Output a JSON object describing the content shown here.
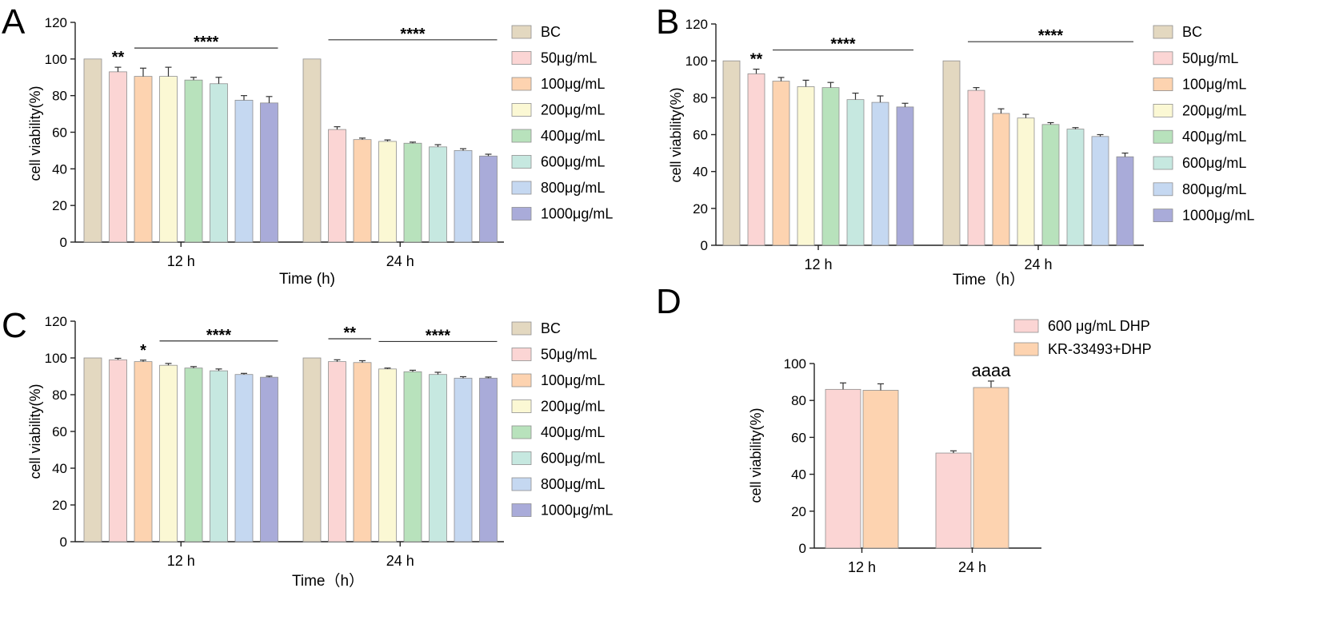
{
  "colors": {
    "BC": "#e3d8c0",
    "50": "#fbd5d4",
    "100": "#fdd3b0",
    "200": "#fbf8d4",
    "400": "#b8e2bc",
    "600": "#c6e8e0",
    "800": "#c5d8f1",
    "1000": "#a9abd9",
    "axis": "#222222"
  },
  "chart_data": [
    {
      "id": "A",
      "type": "bar",
      "panel_label": "A",
      "ylabel": "cell viability(%)",
      "xlabel": "Time (h)",
      "ylim": [
        0,
        120
      ],
      "yticks": [
        "0",
        "20",
        "40",
        "60",
        "80",
        "100",
        "120"
      ],
      "categories": [
        "12 h",
        "24 h"
      ],
      "series": [
        {
          "name": "BC",
          "values": [
            100,
            100
          ],
          "errors": [
            0,
            0
          ]
        },
        {
          "name": "50μg/mL",
          "values": [
            93,
            61.5
          ],
          "errors": [
            2.5,
            1.5
          ]
        },
        {
          "name": "100μg/mL",
          "values": [
            90.5,
            56
          ],
          "errors": [
            4.5,
            0.8
          ]
        },
        {
          "name": "200μg/mL",
          "values": [
            90.5,
            55
          ],
          "errors": [
            5,
            0.8
          ]
        },
        {
          "name": "400μg/mL",
          "values": [
            88.5,
            54
          ],
          "errors": [
            1.5,
            0.6
          ]
        },
        {
          "name": "600μg/mL",
          "values": [
            86.5,
            52
          ],
          "errors": [
            3.5,
            1.2
          ]
        },
        {
          "name": "800μg/mL",
          "values": [
            77.5,
            50
          ],
          "errors": [
            2.5,
            1
          ]
        },
        {
          "name": "1000μg/mL",
          "values": [
            76,
            47
          ],
          "errors": [
            3.5,
            1
          ]
        }
      ],
      "annotations": [
        {
          "text": "**",
          "group": 0,
          "series": 1
        },
        {
          "text": "****",
          "group": 0,
          "from": 2,
          "to": 7
        },
        {
          "text": "****",
          "group": 1,
          "from": 1,
          "to": 7
        }
      ],
      "legend": [
        "BC",
        "50μg/mL",
        "100μg/mL",
        "200μg/mL",
        "400μg/mL",
        "600μg/mL",
        "800μg/mL",
        "1000μg/mL"
      ]
    },
    {
      "id": "B",
      "type": "bar",
      "panel_label": "B",
      "ylabel": "cell viability(%)",
      "xlabel": "Time（h）",
      "ylim": [
        0,
        120
      ],
      "yticks": [
        "0",
        "20",
        "40",
        "60",
        "80",
        "100",
        "120"
      ],
      "categories": [
        "12 h",
        "24 h"
      ],
      "series": [
        {
          "name": "BC",
          "values": [
            100,
            100
          ],
          "errors": [
            0,
            0
          ]
        },
        {
          "name": "50μg/mL",
          "values": [
            93,
            84
          ],
          "errors": [
            2.5,
            1.5
          ]
        },
        {
          "name": "100μg/mL",
          "values": [
            89,
            71.5
          ],
          "errors": [
            2,
            2.5
          ]
        },
        {
          "name": "200μg/mL",
          "values": [
            86,
            69
          ],
          "errors": [
            3.5,
            2
          ]
        },
        {
          "name": "400μg/mL",
          "values": [
            85.5,
            65.5
          ],
          "errors": [
            2.8,
            1
          ]
        },
        {
          "name": "600μg/mL",
          "values": [
            79,
            63
          ],
          "errors": [
            3.5,
            0.8
          ]
        },
        {
          "name": "800μg/mL",
          "values": [
            77.5,
            59
          ],
          "errors": [
            3.5,
            1
          ]
        },
        {
          "name": "1000μg/mL",
          "values": [
            75,
            48
          ],
          "errors": [
            2,
            2
          ]
        }
      ],
      "annotations": [
        {
          "text": "**",
          "group": 0,
          "series": 1
        },
        {
          "text": "****",
          "group": 0,
          "from": 2,
          "to": 7
        },
        {
          "text": "****",
          "group": 1,
          "from": 1,
          "to": 7
        }
      ],
      "legend": [
        "BC",
        "50μg/mL",
        "100μg/mL",
        "200μg/mL",
        "400μg/mL",
        "600μg/mL",
        "800μg/mL",
        "1000μg/mL"
      ]
    },
    {
      "id": "C",
      "type": "bar",
      "panel_label": "C",
      "ylabel": "cell viability(%)",
      "xlabel": "Time（h）",
      "ylim": [
        0,
        120
      ],
      "yticks": [
        "0",
        "20",
        "40",
        "60",
        "80",
        "100",
        "120"
      ],
      "categories": [
        "12 h",
        "24 h"
      ],
      "series": [
        {
          "name": "BC",
          "values": [
            100,
            100
          ],
          "errors": [
            0,
            0
          ]
        },
        {
          "name": "50μg/mL",
          "values": [
            99,
            98
          ],
          "errors": [
            0.8,
            1
          ]
        },
        {
          "name": "100μg/mL",
          "values": [
            98,
            97.5
          ],
          "errors": [
            0.8,
            1
          ]
        },
        {
          "name": "200μg/mL",
          "values": [
            96,
            94
          ],
          "errors": [
            1,
            0.5
          ]
        },
        {
          "name": "400μg/mL",
          "values": [
            94.5,
            92.5
          ],
          "errors": [
            0.8,
            0.8
          ]
        },
        {
          "name": "600μg/mL",
          "values": [
            93,
            91
          ],
          "errors": [
            1,
            1.2
          ]
        },
        {
          "name": "800μg/mL",
          "values": [
            91,
            89
          ],
          "errors": [
            0.6,
            0.8
          ]
        },
        {
          "name": "1000μg/mL",
          "values": [
            89.5,
            89
          ],
          "errors": [
            0.6,
            0.6
          ]
        }
      ],
      "annotations": [
        {
          "text": "*",
          "group": 0,
          "series": 2
        },
        {
          "text": "****",
          "group": 0,
          "from": 3,
          "to": 7
        },
        {
          "text": "**",
          "group": 1,
          "from": 1,
          "to": 2
        },
        {
          "text": "****",
          "group": 1,
          "from": 3,
          "to": 7
        }
      ],
      "legend": [
        "BC",
        "50μg/mL",
        "100μg/mL",
        "200μg/mL",
        "400μg/mL",
        "600μg/mL",
        "800μg/mL",
        "1000μg/mL"
      ]
    },
    {
      "id": "D",
      "type": "bar",
      "panel_label": "D",
      "ylabel": "cell viability(%)",
      "xlabel": "",
      "ylim": [
        0,
        100
      ],
      "yticks": [
        "0",
        "20",
        "40",
        "60",
        "80",
        "100"
      ],
      "categories": [
        "12 h",
        "24 h"
      ],
      "series": [
        {
          "name": "600 μg/mL DHP",
          "values": [
            86,
            51.5
          ],
          "errors": [
            3.5,
            1.2
          ]
        },
        {
          "name": "KR-33493+DHP",
          "values": [
            85.5,
            87
          ],
          "errors": [
            3.5,
            3.5
          ]
        }
      ],
      "annotations": [
        {
          "text": "aaaa",
          "group": 1,
          "series": 1
        }
      ],
      "legend": [
        "600 μg/mL DHP",
        "KR-33493+DHP"
      ]
    }
  ]
}
